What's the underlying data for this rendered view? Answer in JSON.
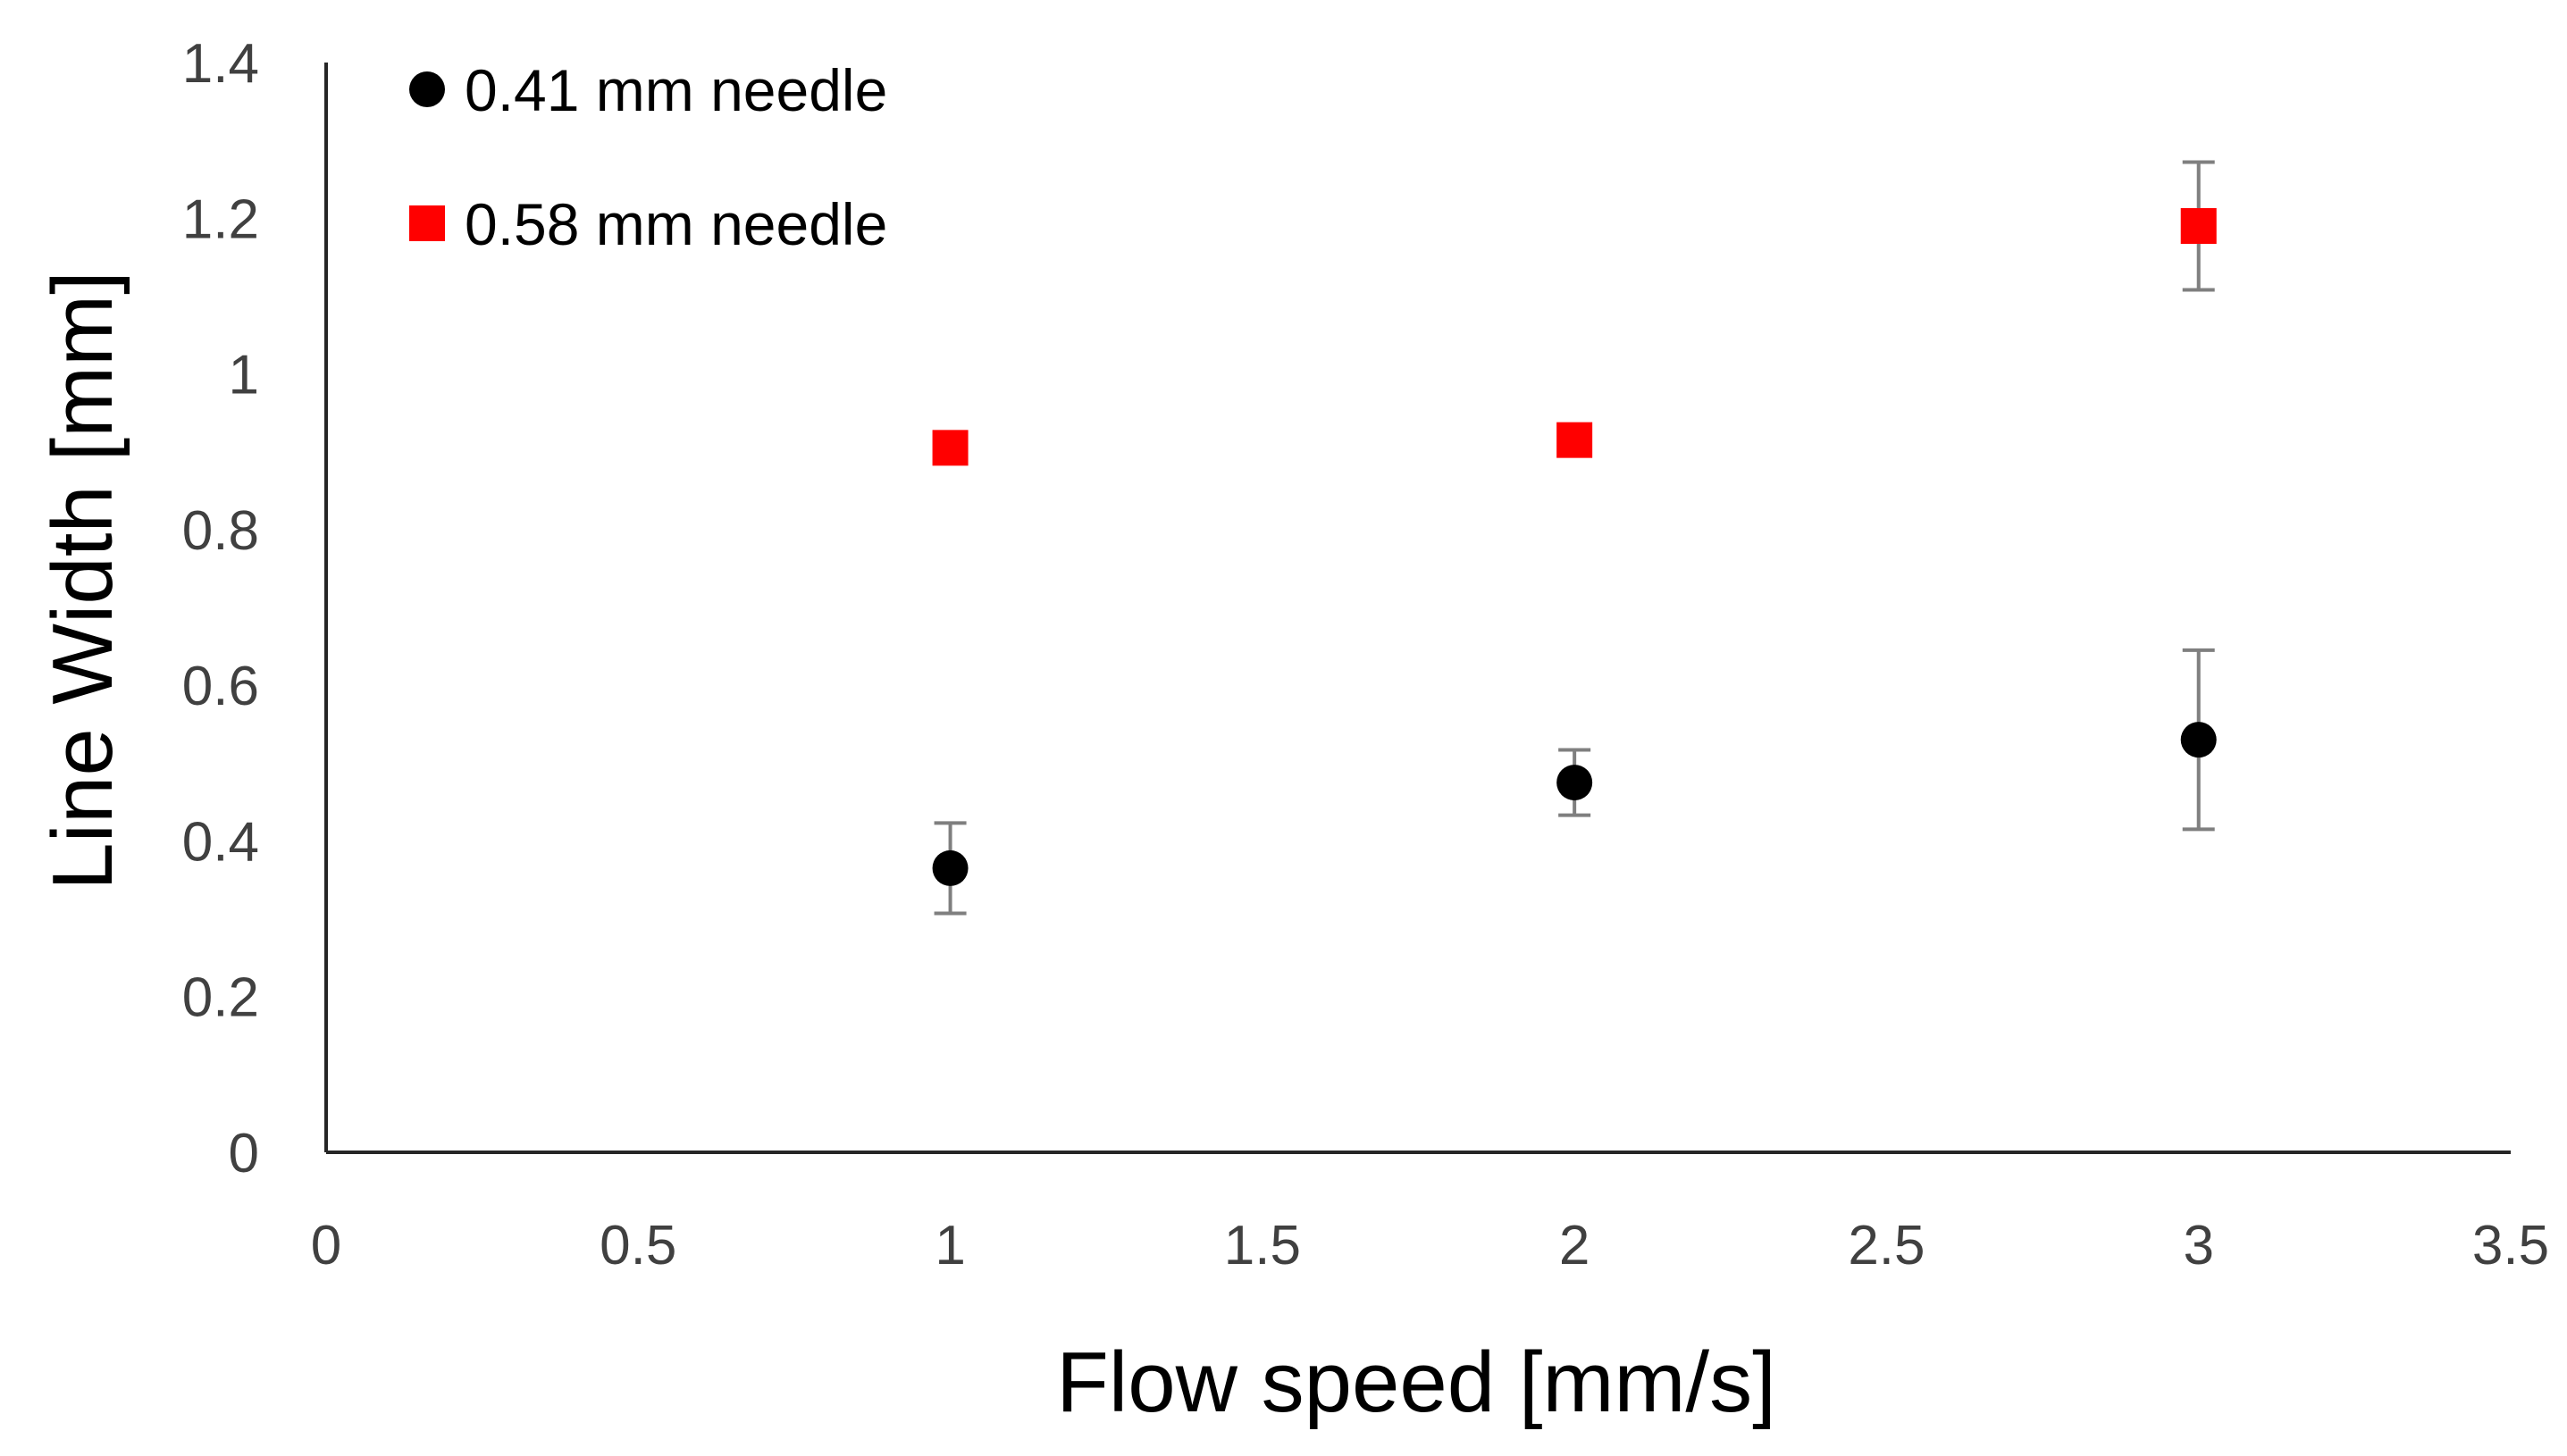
{
  "chart_data": {
    "type": "scatter",
    "title": "",
    "xlabel": "Flow speed [mm/s]",
    "ylabel": "Line Width [mm]",
    "xlim": [
      0,
      3.5
    ],
    "ylim": [
      0,
      1.4
    ],
    "x_ticks": [
      "0",
      "0.5",
      "1",
      "1.5",
      "2",
      "2.5",
      "3",
      "3.5"
    ],
    "y_ticks": [
      "0",
      "0.2",
      "0.4",
      "0.6",
      "0.8",
      "1",
      "1.2",
      "1.4"
    ],
    "x_tick_values": [
      0,
      0.5,
      1,
      1.5,
      2,
      2.5,
      3,
      3.5
    ],
    "y_tick_values": [
      0,
      0.2,
      0.4,
      0.6,
      0.8,
      1,
      1.2,
      1.4
    ],
    "grid": false,
    "legend_position": "top-left",
    "series": [
      {
        "name": "0.41 mm needle",
        "marker": "circle",
        "color": "#000000",
        "x": [
          1,
          2,
          3
        ],
        "y": [
          0.365,
          0.475,
          0.53
        ],
        "error": [
          0.058,
          0.042,
          0.115
        ]
      },
      {
        "name": "0.58 mm needle",
        "marker": "square",
        "color": "#ff0000",
        "x": [
          1,
          2,
          3
        ],
        "y": [
          0.905,
          0.915,
          1.19
        ],
        "error": [
          0.0,
          0.015,
          0.082
        ]
      }
    ]
  }
}
